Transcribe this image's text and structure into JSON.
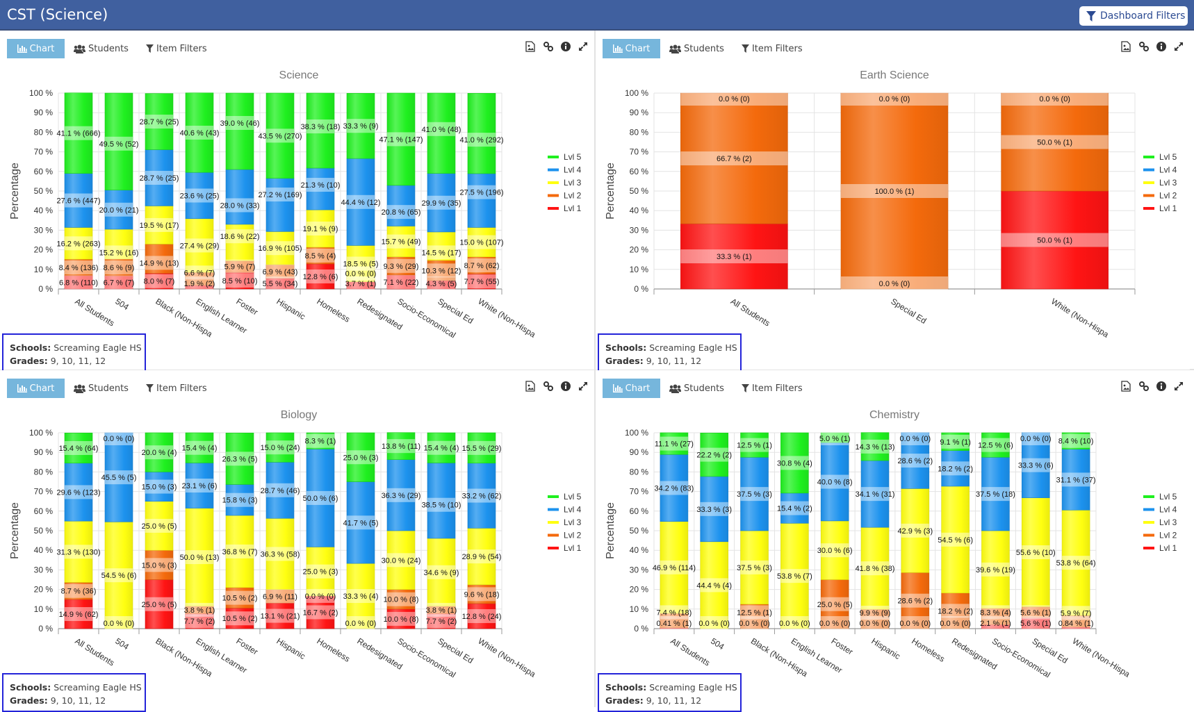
{
  "header": {
    "title": "CST (Science)",
    "dashboard_filters_label": "Dashboard Filters"
  },
  "panel_common": {
    "tabs": {
      "chart": "Chart",
      "students": "Students",
      "item_filters": "Item Filters"
    },
    "icons": [
      "image-export-icon",
      "link-icon",
      "info-icon",
      "expand-icon"
    ],
    "schools_label": "Schools:",
    "schools_value": "Screaming Eagle HS",
    "grades_label": "Grades:",
    "grades_value": "9, 10, 11, 12",
    "active_tab_color": "#76b6dc"
  },
  "level_colors": {
    "Lvl 5": "#1ff01f",
    "Lvl 4": "#1c92ee",
    "Lvl 3": "#ffff10",
    "Lvl 2": "#f46a0c",
    "Lvl 1": "#ff1414"
  },
  "chart_data": [
    {
      "type": "bar",
      "stacked": true,
      "title": "Science",
      "ylabel": "Percentage",
      "ylim": [
        0,
        100
      ],
      "yticks": [
        "0 %",
        "10 %",
        "20 %",
        "30 %",
        "40 %",
        "50 %",
        "60 %",
        "70 %",
        "80 %",
        "90 %",
        "100 %"
      ],
      "legend": "right",
      "grid": true,
      "categories": [
        "All Students",
        "504",
        "Black (Non-Hispa",
        "English Learner",
        "Foster",
        "Hispanic",
        "Homeless",
        "Redesignated",
        "Socio-Economical",
        "Special Ed",
        "White (Non-Hispa"
      ],
      "series": [
        {
          "name": "Lvl 1",
          "values": [
            6.8,
            6.7,
            8.0,
            1.9,
            8.5,
            5.5,
            12.8,
            3.7,
            7.1,
            4.3,
            7.7
          ],
          "labels": [
            "6.8 % (110)",
            "6.7 % (7)",
            "8.0 % (7)",
            "1.9 % (2)",
            "8.5 % (10)",
            "5.5 % (34)",
            "12.8 % (6)",
            "3.7 % (1)",
            "7.1 % (22)",
            "4.3 % (5)",
            "7.7 % (55)"
          ]
        },
        {
          "name": "Lvl 2",
          "values": [
            8.4,
            8.6,
            14.9,
            6.6,
            5.9,
            6.9,
            8.5,
            0.0,
            9.3,
            10.3,
            8.7
          ],
          "labels": [
            "8.4 % (136)",
            "8.6 % (9)",
            "14.9 % (13)",
            "6.6 % (7)",
            "5.9 % (7)",
            "6.9 % (43)",
            "8.5 % (4)",
            "0.0 % (0)",
            "9.3 % (29)",
            "10.3 % (12)",
            "8.7 % (62)"
          ]
        },
        {
          "name": "Lvl 3",
          "values": [
            16.2,
            15.2,
            19.5,
            27.4,
            18.6,
            16.9,
            19.1,
            18.5,
            15.7,
            14.5,
            15.0
          ],
          "labels": [
            "16.2 % (263)",
            "15.2 % (16)",
            "19.5 % (17)",
            "27.4 % (29)",
            "18.6 % (22)",
            "16.9 % (105)",
            "19.1 % (9)",
            "18.5 % (5)",
            "15.7 % (49)",
            "14.5 % (17)",
            "15.0 % (107)"
          ]
        },
        {
          "name": "Lvl 4",
          "values": [
            27.6,
            20.0,
            28.7,
            23.6,
            28.0,
            27.2,
            21.3,
            44.4,
            20.8,
            29.9,
            27.5
          ],
          "labels": [
            "27.6 % (447)",
            "20.0 % (21)",
            "28.7 % (25)",
            "23.6 % (25)",
            "28.0 % (33)",
            "27.2 % (169)",
            "21.3 % (10)",
            "44.4 % (12)",
            "20.8 % (65)",
            "29.9 % (35)",
            "27.5 % (196)"
          ]
        },
        {
          "name": "Lvl 5",
          "values": [
            41.1,
            49.5,
            28.7,
            40.6,
            39.0,
            43.5,
            38.3,
            33.3,
            47.1,
            41.0,
            41.0
          ],
          "labels": [
            "41.1 % (666)",
            "49.5 % (52)",
            "28.7 % (25)",
            "40.6 % (43)",
            "39.0 % (46)",
            "43.5 % (270)",
            "38.3 % (18)",
            "33.3 % (9)",
            "47.1 % (147)",
            "41.0 % (48)",
            "41.0 % (292)"
          ]
        }
      ]
    },
    {
      "type": "bar",
      "stacked": true,
      "title": "Earth Science",
      "ylabel": "Percentage",
      "ylim": [
        0,
        100
      ],
      "yticks": [
        "0 %",
        "10 %",
        "20 %",
        "30 %",
        "40 %",
        "50 %",
        "60 %",
        "70 %",
        "80 %",
        "90 %",
        "100 %"
      ],
      "legend": "right",
      "grid": true,
      "categories": [
        "All Students",
        "Special Ed",
        "White (Non-Hispa"
      ],
      "series": [
        {
          "name": "Lvl 1",
          "values": [
            33.3,
            0.0,
            50.0
          ],
          "labels": [
            "33.3 % (1)",
            "0.0 % (0)",
            "50.0 % (1)"
          ]
        },
        {
          "name": "Lvl 2",
          "values": [
            66.7,
            100.0,
            50.0
          ],
          "labels": [
            "66.7 % (2)",
            "100.0 % (1)",
            "50.0 % (1)"
          ]
        },
        {
          "name": "Lvl 3",
          "values": [
            null,
            null,
            null
          ],
          "labels": [
            null,
            null,
            null
          ]
        },
        {
          "name": "Lvl 4",
          "values": [
            null,
            null,
            null
          ],
          "labels": [
            null,
            null,
            null
          ]
        },
        {
          "name": "Lvl 5",
          "values": [
            0.0,
            0.0,
            0.0
          ],
          "labels": [
            "0.0 % (0)",
            "0.0 % (0)",
            "0.0 % (0)"
          ]
        }
      ]
    },
    {
      "type": "bar",
      "stacked": true,
      "title": "Biology",
      "ylabel": "Percentage",
      "ylim": [
        0,
        100
      ],
      "yticks": [
        "0 %",
        "10 %",
        "20 %",
        "30 %",
        "40 %",
        "50 %",
        "60 %",
        "70 %",
        "80 %",
        "90 %",
        "100 %"
      ],
      "legend": "right",
      "grid": true,
      "categories": [
        "All Students",
        "504",
        "Black (Non-Hispa",
        "English Learner",
        "Foster",
        "Hispanic",
        "Homeless",
        "Redesignated",
        "Socio-Economical",
        "Special Ed",
        "White (Non-Hispa"
      ],
      "series": [
        {
          "name": "Lvl 1",
          "values": [
            14.9,
            0.0,
            25.0,
            7.7,
            10.5,
            13.1,
            16.7,
            0.0,
            10.0,
            7.7,
            12.8
          ],
          "labels": [
            "14.9 % (62)",
            "0.0 % (0)",
            "25.0 % (5)",
            "7.7 % (2)",
            "10.5 % (2)",
            "13.1 % (21)",
            "16.7 % (2)",
            "0.0 % (0)",
            "10.0 % (8)",
            "7.7 % (2)",
            "12.8 % (24)"
          ]
        },
        {
          "name": "Lvl 2",
          "values": [
            8.7,
            null,
            15.0,
            3.8,
            10.5,
            6.9,
            0.0,
            null,
            10.0,
            3.8,
            9.6
          ],
          "labels": [
            "8.7 % (36)",
            null,
            "15.0 % (3)",
            "3.8 % (1)",
            "10.5 % (2)",
            "6.9 % (11)",
            "0.0 % (0)",
            null,
            "10.0 % (8)",
            "3.8 % (1)",
            "9.6 % (18)"
          ]
        },
        {
          "name": "Lvl 3",
          "values": [
            31.3,
            54.5,
            25.0,
            50.0,
            36.8,
            36.3,
            25.0,
            33.3,
            30.0,
            34.6,
            28.9
          ],
          "labels": [
            "31.3 % (130)",
            "54.5 % (6)",
            "25.0 % (5)",
            "50.0 % (13)",
            "36.8 % (7)",
            "36.3 % (58)",
            "25.0 % (3)",
            "33.3 % (4)",
            "30.0 % (24)",
            "34.6 % (9)",
            "28.9 % (54)"
          ]
        },
        {
          "name": "Lvl 4",
          "values": [
            29.6,
            45.5,
            15.0,
            23.1,
            15.8,
            28.7,
            50.0,
            41.7,
            36.3,
            38.5,
            33.2
          ],
          "labels": [
            "29.6 % (123)",
            "45.5 % (5)",
            "15.0 % (3)",
            "23.1 % (6)",
            "15.8 % (3)",
            "28.7 % (46)",
            "50.0 % (6)",
            "41.7 % (5)",
            "36.3 % (29)",
            "38.5 % (10)",
            "33.2 % (62)"
          ]
        },
        {
          "name": "Lvl 5",
          "values": [
            15.4,
            0.0,
            20.0,
            15.4,
            26.3,
            15.0,
            8.3,
            25.0,
            13.8,
            15.4,
            15.5
          ],
          "labels": [
            "15.4 % (64)",
            "0.0 % (0)",
            "20.0 % (4)",
            "15.4 % (4)",
            "26.3 % (5)",
            "15.0 % (24)",
            "8.3 % (1)",
            "25.0 % (3)",
            "13.8 % (11)",
            "15.4 % (4)",
            "15.5 % (29)"
          ]
        }
      ]
    },
    {
      "type": "bar",
      "stacked": true,
      "title": "Chemistry",
      "ylabel": "Percentage",
      "ylim": [
        0,
        100
      ],
      "yticks": [
        "0 %",
        "10 %",
        "20 %",
        "30 %",
        "40 %",
        "50 %",
        "60 %",
        "70 %",
        "80 %",
        "90 %",
        "100 %"
      ],
      "legend": "right",
      "grid": true,
      "categories": [
        "All Students",
        "504",
        "Black (Non-Hispa",
        "English Learner",
        "Foster",
        "Hispanic",
        "Homeless",
        "Redesignated",
        "Socio-Economical",
        "Special Ed",
        "White (Non-Hispa"
      ],
      "series": [
        {
          "name": "Lvl 1",
          "values": [
            0.41,
            0.0,
            0.0,
            0.0,
            0.0,
            0.0,
            0.0,
            0.0,
            2.1,
            5.6,
            0.84
          ],
          "labels": [
            "0.41 % (1)",
            "0.0 % (0)",
            "0.0 % (0)",
            "0.0 % (0)",
            "0.0 % (0)",
            "0.0 % (0)",
            "0.0 % (0)",
            "0.0 % (0)",
            "2.1 % (1)",
            "5.6 % (1)",
            "0.84 % (1)"
          ]
        },
        {
          "name": "Lvl 2",
          "values": [
            7.4,
            null,
            12.5,
            null,
            25.0,
            9.9,
            28.6,
            18.2,
            8.3,
            5.6,
            5.9
          ],
          "labels": [
            "7.4 % (18)",
            null,
            "12.5 % (1)",
            null,
            "25.0 % (5)",
            "9.9 % (9)",
            "28.6 % (2)",
            "18.2 % (2)",
            "8.3 % (4)",
            "5.6 % (1)",
            "5.9 % (7)"
          ]
        },
        {
          "name": "Lvl 3",
          "values": [
            46.9,
            44.4,
            37.5,
            53.8,
            30.0,
            41.8,
            42.9,
            54.5,
            39.6,
            55.6,
            53.8
          ],
          "labels": [
            "46.9 % (114)",
            "44.4 % (4)",
            "37.5 % (3)",
            "53.8 % (7)",
            "30.0 % (6)",
            "41.8 % (38)",
            "42.9 % (3)",
            "54.5 % (6)",
            "39.6 % (19)",
            "55.6 % (10)",
            "53.8 % (64)"
          ]
        },
        {
          "name": "Lvl 4",
          "values": [
            34.2,
            33.3,
            37.5,
            15.4,
            40.0,
            34.1,
            28.6,
            18.2,
            37.5,
            33.3,
            31.1
          ],
          "labels": [
            "34.2 % (83)",
            "33.3 % (3)",
            "37.5 % (3)",
            "15.4 % (2)",
            "40.0 % (8)",
            "34.1 % (31)",
            "28.6 % (2)",
            "18.2 % (2)",
            "37.5 % (18)",
            "33.3 % (6)",
            "31.1 % (37)"
          ]
        },
        {
          "name": "Lvl 5",
          "values": [
            11.1,
            22.2,
            12.5,
            30.8,
            5.0,
            14.3,
            0.0,
            9.1,
            12.5,
            0.0,
            8.4
          ],
          "labels": [
            "11.1 % (27)",
            "22.2 % (2)",
            "12.5 % (1)",
            "30.8 % (4)",
            "5.0 % (1)",
            "14.3 % (13)",
            "0.0 % (0)",
            "9.1 % (1)",
            "12.5 % (6)",
            "0.0 % (0)",
            "8.4 % (10)"
          ]
        }
      ]
    }
  ]
}
